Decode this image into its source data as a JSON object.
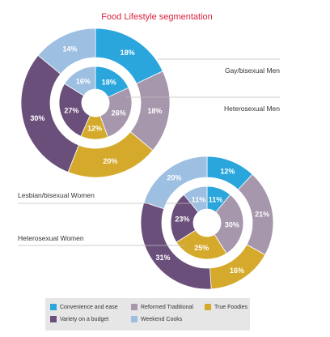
{
  "chart_data": {
    "type": "pie",
    "title": "Food Lifestyle segmentation",
    "categories": [
      "Convenience and ease",
      "Reformed Traditional",
      "True Foodies",
      "Variety on a budget",
      "Weekend Cooks"
    ],
    "colors": {
      "Convenience and ease": "#2aa6dd",
      "Reformed Traditional": "#a797ad",
      "True Foodies": "#d5aa2c",
      "Variety on a budget": "#6b4f7b",
      "Weekend Cooks": "#9dbfe2"
    },
    "charts": [
      {
        "outer": {
          "name": "Gay/bisexual Men",
          "values": {
            "Convenience and ease": 18,
            "Reformed Traditional": 18,
            "True Foodies": 20,
            "Variety on a budget": 30,
            "Weekend Cooks": 14
          }
        },
        "inner": {
          "name": "Heterosexual Men",
          "values": {
            "Convenience and ease": 18,
            "Reformed Traditional": 26,
            "True Foodies": 12,
            "Variety on a budget": 27,
            "Weekend Cooks": 16
          }
        }
      },
      {
        "outer": {
          "name": "Lesbian/bisexual Women",
          "values": {
            "Convenience and ease": 12,
            "Reformed Traditional": 21,
            "True Foodies": 16,
            "Variety on a budget": 31,
            "Weekend Cooks": 20
          }
        },
        "inner": {
          "name": "Heterosexual Women",
          "values": {
            "Convenience and ease": 11,
            "Reformed Traditional": 30,
            "True Foodies": 25,
            "Variety on a budget": 23,
            "Weekend Cooks": 11
          }
        }
      }
    ],
    "legend": [
      "Convenience and ease",
      "Reformed Traditional",
      "True Foodies",
      "Variety on a budget",
      "Weekend Cooks"
    ],
    "legend_position": "bottom"
  }
}
